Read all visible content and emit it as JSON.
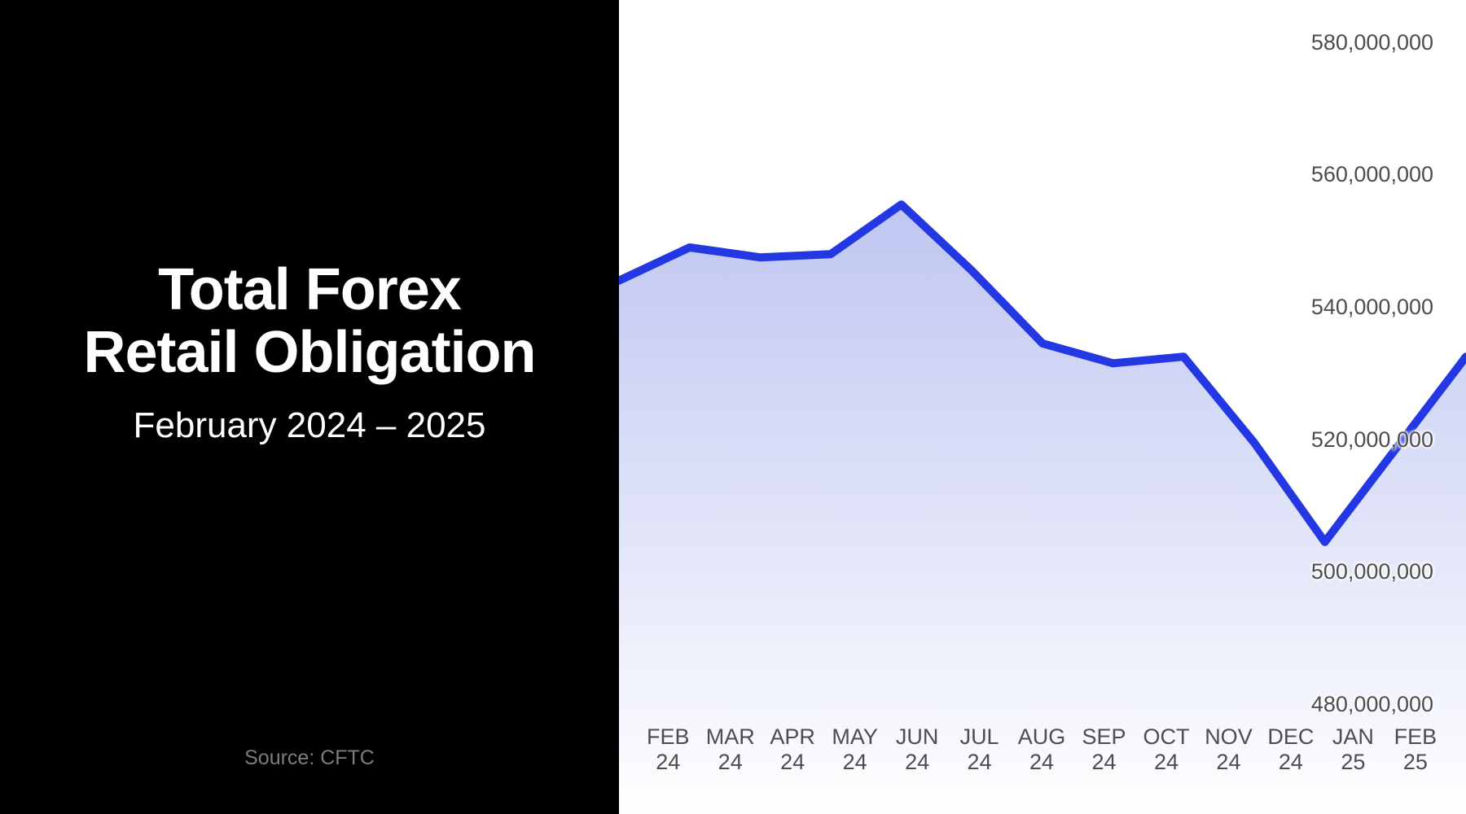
{
  "panel": {
    "title_line1": "Total Forex",
    "title_line2": "Retail Obligation",
    "subtitle": "February 2024 – 2025",
    "source": "Source: CFTC"
  },
  "colors": {
    "left_panel_background": "#000000",
    "chart_background": "#ffffff",
    "line": "#2337e2",
    "area_fill_top": "#bfc6f1",
    "area_fill_bottom": "#ffffff",
    "axis_label_text": "#4d4d4d",
    "source_text": "#7d7d7d",
    "title_text": "#ffffff"
  },
  "chart_data": {
    "type": "area",
    "title": "Total Forex Retail Obligation",
    "subtitle": "February 2024 – 2025",
    "source": "Source: CFTC",
    "series_name": "Total Forex Retail Obligation",
    "categories": [
      "FEB 24",
      "MAR 24",
      "APR 24",
      "MAY 24",
      "JUN 24",
      "JUL 24",
      "AUG 24",
      "SEP 24",
      "OCT 24",
      "NOV 24",
      "DEC 24",
      "JAN 25",
      "FEB 25"
    ],
    "x_labels": [
      {
        "month": "FEB",
        "year": "24"
      },
      {
        "month": "MAR",
        "year": "24"
      },
      {
        "month": "APR",
        "year": "24"
      },
      {
        "month": "MAY",
        "year": "24"
      },
      {
        "month": "JUN",
        "year": "24"
      },
      {
        "month": "JUL",
        "year": "24"
      },
      {
        "month": "AUG",
        "year": "24"
      },
      {
        "month": "SEP",
        "year": "24"
      },
      {
        "month": "OCT",
        "year": "24"
      },
      {
        "month": "NOV",
        "year": "24"
      },
      {
        "month": "DEC",
        "year": "24"
      },
      {
        "month": "JAN",
        "year": "25"
      },
      {
        "month": "FEB",
        "year": "25"
      }
    ],
    "values": [
      544000000,
      549000000,
      547500000,
      548000000,
      555500000,
      545500000,
      534500000,
      531500000,
      532500000,
      519500000,
      504500000,
      518500000,
      532500000
    ],
    "ylim": [
      480000000,
      580000000
    ],
    "y_tick_values": [
      580000000,
      560000000,
      540000000,
      520000000,
      500000000,
      480000000
    ],
    "y_ticks": [
      "580,000,000",
      "560,000,000",
      "540,000,000",
      "520,000,000",
      "500,000,000",
      "480,000,000"
    ],
    "xlabel": "",
    "ylabel": "",
    "grid": "off",
    "legend": "none",
    "y_axis_position": "right"
  }
}
